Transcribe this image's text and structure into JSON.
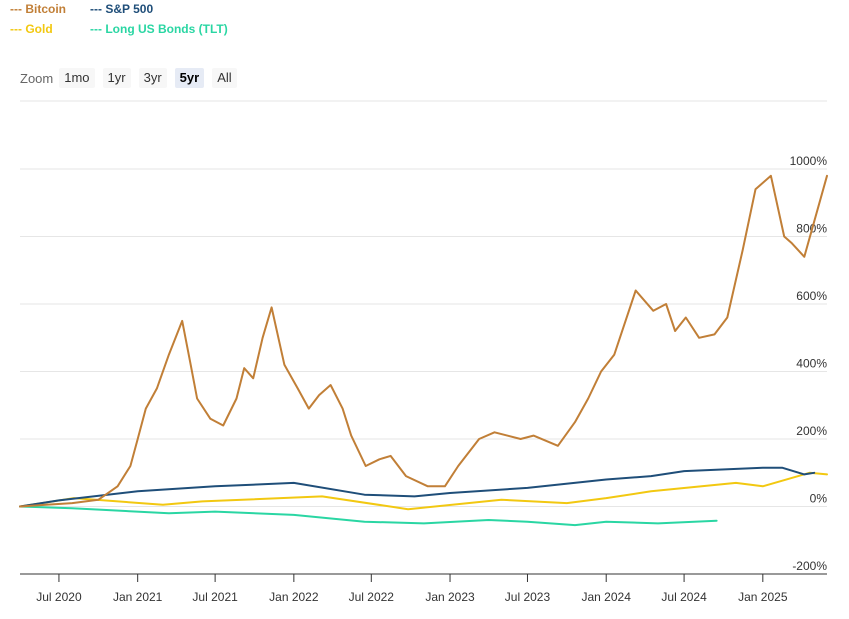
{
  "legend": [
    {
      "label": "--- Bitcoin",
      "color": "#c17f37"
    },
    {
      "label": "--- S&P 500",
      "color": "#1f4e79"
    },
    {
      "label": "--- Gold",
      "color": "#f2c811"
    },
    {
      "label": "--- Long US Bonds (TLT)",
      "color": "#2ad6a3"
    }
  ],
  "zoom": {
    "label": "Zoom",
    "buttons": [
      "1mo",
      "1yr",
      "3yr",
      "5yr",
      "All"
    ],
    "active": "5yr"
  },
  "chart_data": {
    "type": "line",
    "y_unit": "%",
    "ylim": [
      -200,
      1000
    ],
    "y_ticks": [
      1000,
      800,
      600,
      400,
      200,
      0,
      -200
    ],
    "y_tick_labels": [
      "1000%",
      "800%",
      "600%",
      "400%",
      "200%",
      "0%",
      "-200%"
    ],
    "x_range": [
      "2020-04-01",
      "2025-05-31"
    ],
    "x_ticks": [
      "2020-07-01",
      "2021-01-01",
      "2021-07-01",
      "2022-01-01",
      "2022-07-01",
      "2023-01-01",
      "2023-07-01",
      "2024-01-01",
      "2024-07-01",
      "2025-01-01"
    ],
    "x_tick_labels": [
      "Jul 2020",
      "Jan 2021",
      "Jul 2021",
      "Jan 2022",
      "Jul 2022",
      "Jan 2023",
      "Jul 2023",
      "Jan 2024",
      "Jul 2024",
      "Jan 2025"
    ],
    "grid": true,
    "legend_position": "top-left",
    "series": [
      {
        "name": "Bitcoin",
        "color": "#c17f37",
        "x": [
          "2020-04-01",
          "2020-06-01",
          "2020-08-01",
          "2020-10-01",
          "2020-11-15",
          "2020-12-15",
          "2021-01-01",
          "2021-01-20",
          "2021-02-15",
          "2021-03-15",
          "2021-04-15",
          "2021-05-05",
          "2021-05-20",
          "2021-06-20",
          "2021-07-20",
          "2021-08-20",
          "2021-09-07",
          "2021-09-28",
          "2021-10-20",
          "2021-11-10",
          "2021-12-10",
          "2022-01-10",
          "2022-02-05",
          "2022-03-01",
          "2022-03-28",
          "2022-04-25",
          "2022-05-15",
          "2022-06-18",
          "2022-07-20",
          "2022-08-15",
          "2022-09-20",
          "2022-11-10",
          "2022-12-20",
          "2023-01-20",
          "2023-03-10",
          "2023-04-15",
          "2023-06-15",
          "2023-07-15",
          "2023-09-10",
          "2023-10-20",
          "2023-11-20",
          "2023-12-20",
          "2024-01-20",
          "2024-03-10",
          "2024-04-20",
          "2024-05-20",
          "2024-06-10",
          "2024-07-05",
          "2024-08-05",
          "2024-09-10",
          "2024-10-10",
          "2024-11-15",
          "2024-12-15",
          "2025-01-20",
          "2025-02-20",
          "2025-03-10",
          "2025-04-08",
          "2025-05-31"
        ],
        "values": [
          0,
          5,
          10,
          20,
          60,
          120,
          200,
          290,
          350,
          450,
          550,
          420,
          320,
          260,
          240,
          320,
          410,
          380,
          500,
          590,
          420,
          350,
          290,
          330,
          360,
          290,
          210,
          120,
          140,
          150,
          90,
          60,
          60,
          120,
          200,
          220,
          200,
          210,
          180,
          250,
          320,
          400,
          450,
          640,
          580,
          600,
          520,
          560,
          500,
          510,
          560,
          760,
          940,
          980,
          800,
          780,
          740,
          980
        ]
      },
      {
        "name": "S&P 500",
        "color": "#1f4e79",
        "x": [
          "2020-04-01",
          "2020-07-01",
          "2021-01-01",
          "2021-07-01",
          "2022-01-01",
          "2022-06-15",
          "2022-10-10",
          "2023-01-01",
          "2023-07-01",
          "2024-01-01",
          "2024-04-15",
          "2024-07-01",
          "2025-01-01",
          "2025-02-15",
          "2025-04-08",
          "2025-05-01"
        ],
        "values": [
          0,
          18,
          45,
          60,
          70,
          35,
          30,
          40,
          55,
          80,
          90,
          105,
          115,
          115,
          95,
          100
        ]
      },
      {
        "name": "Gold",
        "color": "#f2c811",
        "x": [
          "2020-04-01",
          "2020-08-05",
          "2021-03-01",
          "2021-06-01",
          "2022-03-08",
          "2022-09-25",
          "2023-05-01",
          "2023-10-01",
          "2024-01-01",
          "2024-04-15",
          "2024-10-30",
          "2025-01-01",
          "2025-04-20",
          "2025-05-31"
        ],
        "values": [
          0,
          25,
          5,
          15,
          30,
          -8,
          20,
          10,
          25,
          45,
          70,
          60,
          100,
          95
        ]
      },
      {
        "name": "Long US Bonds (TLT)",
        "color": "#2ad6a3",
        "x": [
          "2020-04-01",
          "2020-08-01",
          "2021-03-15",
          "2021-07-01",
          "2022-01-01",
          "2022-06-15",
          "2022-11-01",
          "2023-04-01",
          "2023-07-01",
          "2023-10-20",
          "2024-01-01",
          "2024-05-01",
          "2024-09-15"
        ],
        "values": [
          0,
          -5,
          -20,
          -15,
          -25,
          -45,
          -50,
          -40,
          -45,
          -55,
          -45,
          -50,
          -42
        ]
      }
    ]
  }
}
